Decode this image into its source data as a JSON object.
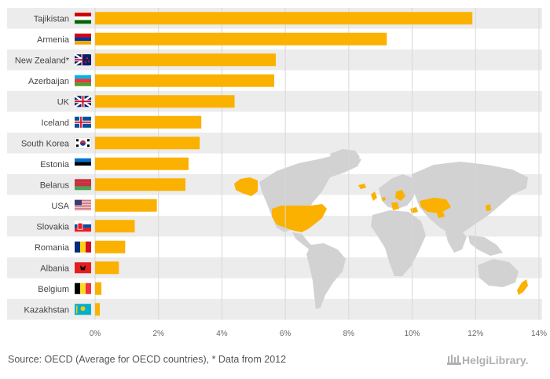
{
  "chart_data": {
    "type": "bar",
    "orientation": "horizontal",
    "categories": [
      "Tajikistan",
      "Armenia",
      "New Zealand*",
      "Azerbaijan",
      "UK",
      "Iceland",
      "South Korea",
      "Estonia",
      "Belarus",
      "USA",
      "Slovakia",
      "Romania",
      "Albania",
      "Belgium",
      "Kazakhstan"
    ],
    "values": [
      11.9,
      9.2,
      5.7,
      5.65,
      4.4,
      3.35,
      3.3,
      2.95,
      2.85,
      1.95,
      1.25,
      0.95,
      0.75,
      0.2,
      0.15
    ],
    "xlim": [
      0,
      14
    ],
    "xticks": [
      0,
      2,
      4,
      6,
      8,
      10,
      12,
      14
    ],
    "tick_suffix": "%",
    "bar_color": "#fbb100",
    "highlight_color": "#fbb100",
    "map_base_color": "#d2d2d2",
    "grid": true
  },
  "footer": {
    "source": "Source: OECD (Average for OECD countries), * Data from 2012",
    "brand": "HelgiLibrary."
  }
}
